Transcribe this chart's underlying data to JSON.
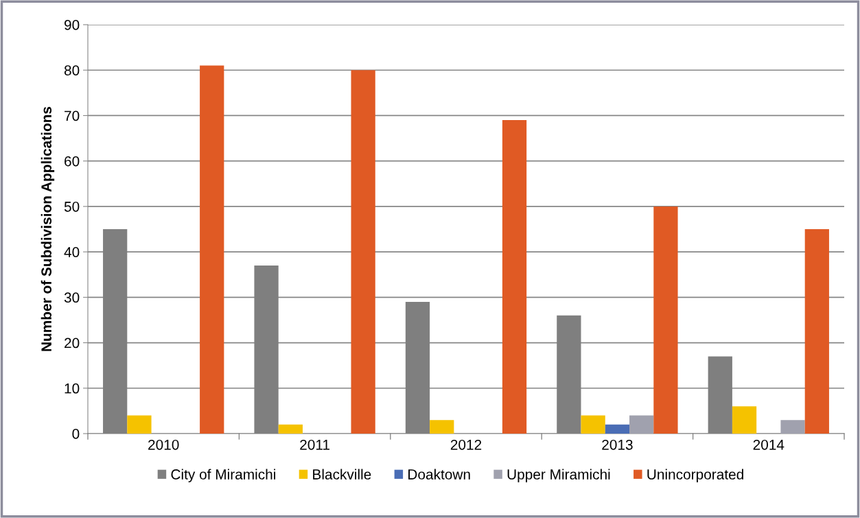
{
  "chart_data": {
    "type": "bar",
    "ylabel": "Number of Subdivision Applications",
    "categories": [
      "2010",
      "2011",
      "2012",
      "2013",
      "2014"
    ],
    "series": [
      {
        "name": "City of Miramichi",
        "color": "#7f7f7f",
        "values": [
          45,
          37,
          29,
          26,
          17
        ]
      },
      {
        "name": "Blackville",
        "color": "#f5c200",
        "values": [
          4,
          2,
          3,
          4,
          6
        ]
      },
      {
        "name": "Doaktown",
        "color": "#4a6db5",
        "values": [
          0,
          0,
          0,
          2,
          0
        ]
      },
      {
        "name": "Upper Miramichi",
        "color": "#a0a1ae",
        "values": [
          0,
          0,
          0,
          4,
          3
        ]
      },
      {
        "name": "Unincorporated",
        "color": "#e05a24",
        "values": [
          81,
          80,
          69,
          50,
          45
        ]
      }
    ],
    "ylim": [
      0,
      90
    ],
    "yticks": [
      0,
      10,
      20,
      30,
      40,
      50,
      60,
      70,
      80,
      90
    ],
    "grid": "y",
    "legend": "bottom"
  }
}
